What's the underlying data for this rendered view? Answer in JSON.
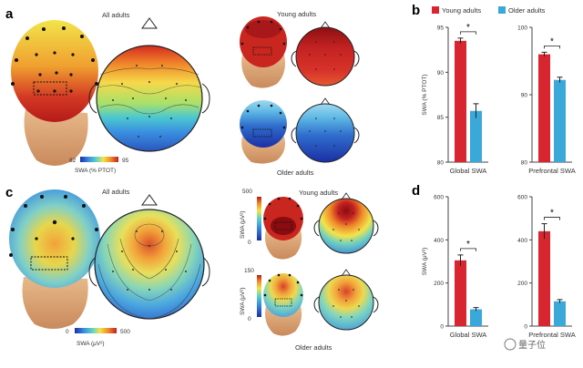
{
  "panels": {
    "a": {
      "letter": "a",
      "group_label": "All adults",
      "young_label": "Young adults",
      "older_label": "Older adults",
      "colorbar": {
        "min": "82",
        "max": "95",
        "label": "SWA (% PTOT)"
      }
    },
    "c": {
      "letter": "c",
      "group_label": "All adults",
      "young_label": "Young adults",
      "older_label": "Older adults",
      "colorbar": {
        "min": "0",
        "max": "500",
        "label": "SWA (μV²)"
      },
      "young_scale": {
        "max": "500",
        "min": "0",
        "label": "SWA (μV²)"
      },
      "older_scale": {
        "max": "150",
        "min": "0",
        "label": "SWA (μV²)"
      }
    },
    "b_letter": "b",
    "d_letter": "d"
  },
  "legend": {
    "items": [
      {
        "name": "Young adults",
        "color": "#d7262f"
      },
      {
        "name": "Older adults",
        "color": "#3ba8da"
      }
    ]
  },
  "colors": {
    "young": "#d7262f",
    "older": "#3ba8da",
    "axis": "#444444"
  },
  "watermark": "量子位",
  "chart_data": [
    {
      "panel": "b",
      "type": "bar",
      "title": "Global SWA",
      "ylabel": "SWA (% PTOT)",
      "ylim": [
        80,
        95
      ],
      "yticks": [
        80,
        85,
        90,
        95
      ],
      "categories": [
        "Young adults",
        "Older adults"
      ],
      "values": [
        93.5,
        85.7
      ],
      "errors": [
        0.3,
        0.8
      ],
      "significance": "*"
    },
    {
      "panel": "b",
      "type": "bar",
      "title": "Prefrontal SWA",
      "ylabel": "",
      "ylim": [
        80,
        100
      ],
      "yticks": [
        80,
        90,
        100
      ],
      "categories": [
        "Young adults",
        "Older adults"
      ],
      "values": [
        96.0,
        92.2
      ],
      "errors": [
        0.3,
        0.4
      ],
      "significance": "*"
    },
    {
      "panel": "d",
      "type": "bar",
      "title": "Global SWA",
      "ylabel": "SWA (μV²)",
      "ylim": [
        0,
        600
      ],
      "yticks": [
        0,
        200,
        400,
        600
      ],
      "categories": [
        "Young adults",
        "Older adults"
      ],
      "values": [
        305,
        78
      ],
      "errors": [
        25,
        8
      ],
      "significance": "*"
    },
    {
      "panel": "d",
      "type": "bar",
      "title": "Prefrontal SWA",
      "ylabel": "",
      "ylim": [
        0,
        600
      ],
      "yticks": [
        0,
        200,
        400,
        600
      ],
      "categories": [
        "Young adults",
        "Older adults"
      ],
      "values": [
        440,
        115
      ],
      "errors": [
        35,
        8
      ],
      "significance": "*"
    }
  ]
}
